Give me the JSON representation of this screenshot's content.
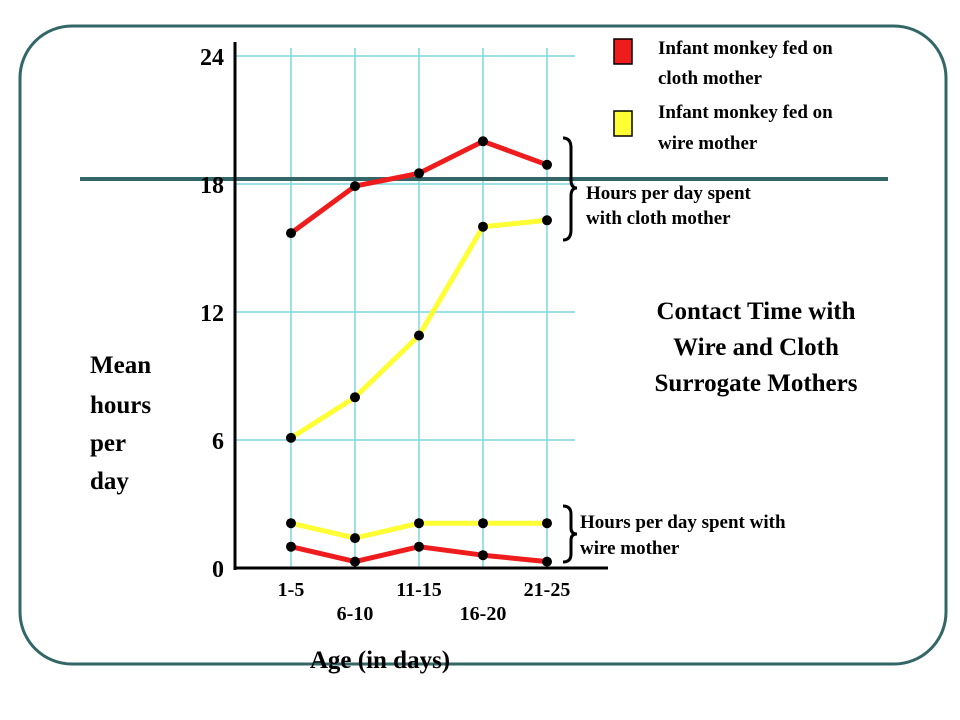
{
  "chart_data": {
    "type": "line",
    "title": [
      "Contact Time with",
      "Wire and Cloth",
      "Surrogate Mothers"
    ],
    "xlabel": "Age (in days)",
    "ylabel": [
      "Mean",
      "hours",
      "per",
      "day"
    ],
    "categories": [
      "1-5",
      "6-10",
      "11-15",
      "16-20",
      "21-25"
    ],
    "yticks": [
      0,
      6,
      12,
      18,
      24
    ],
    "ylim": [
      0,
      24
    ],
    "grid": "vertical and horizontal gridlines",
    "legend": [
      {
        "label_lines": [
          "Infant monkey fed on",
          "cloth mother"
        ],
        "color": "#ee1c1c"
      },
      {
        "label_lines": [
          "Infant monkey fed on",
          "wire mother"
        ],
        "color": "#ffff33"
      }
    ],
    "series": [
      {
        "group": "cloth",
        "color": "#ee1c1c",
        "values": [
          15.7,
          17.9,
          18.5,
          20.0,
          18.9
        ]
      },
      {
        "group": "cloth",
        "color": "#ffff33",
        "values": [
          6.1,
          8.0,
          10.9,
          16.0,
          16.3
        ]
      },
      {
        "group": "wire",
        "color": "#ffff33",
        "values": [
          2.1,
          1.4,
          2.1,
          2.1,
          2.1
        ]
      },
      {
        "group": "wire",
        "color": "#ee1c1c",
        "values": [
          1.0,
          0.3,
          1.0,
          0.6,
          0.3
        ]
      }
    ],
    "annotations": {
      "cloth": [
        "Hours per day spent",
        "with cloth mother"
      ],
      "wire": [
        "Hours per day spent with",
        "wire mother"
      ]
    }
  },
  "colors": {
    "frame": "#336666",
    "grid": "#7fd6e0",
    "axis": "#000000"
  }
}
